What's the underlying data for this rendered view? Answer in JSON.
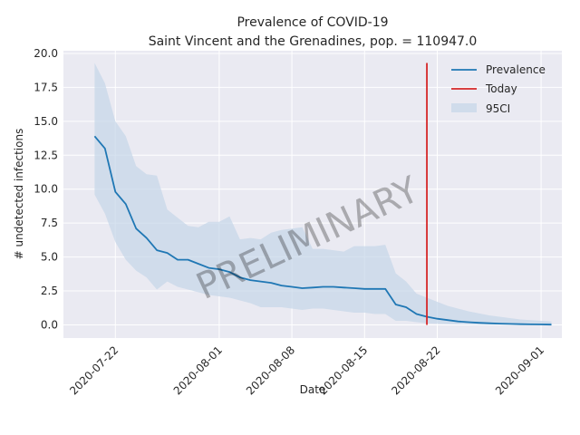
{
  "chart_data": {
    "type": "line",
    "title": "Prevalence of COVID-19",
    "subtitle": "Saint Vincent and the Grenadines, pop. = 110947.0",
    "xlabel": "Date",
    "ylabel": "# undetected infections",
    "watermark": "PRELIMINARY",
    "x_range": [
      "2020-07-17",
      "2020-09-03"
    ],
    "ylim": [
      -0.97,
      20.2
    ],
    "x_ticks": [
      "2020-07-22",
      "2020-08-01",
      "2020-08-08",
      "2020-08-15",
      "2020-08-22",
      "2020-09-01"
    ],
    "y_ticks": [
      "0.0",
      "2.5",
      "5.0",
      "7.5",
      "10.0",
      "12.5",
      "15.0",
      "17.5",
      "20.0"
    ],
    "grid": true,
    "legend_position": "top-right",
    "legend": {
      "prevalence": "Prevalence",
      "today": "Today",
      "ci": "95CI"
    },
    "colors": {
      "prevalence": "#1f77b4",
      "today": "#d62728",
      "ci": "#c5d6e8",
      "plot_bg": "#eaeaf2",
      "grid": "#ffffff"
    },
    "series": [
      {
        "name": "Prevalence",
        "dates": [
          "2020-07-20",
          "2020-07-21",
          "2020-07-22",
          "2020-07-23",
          "2020-07-24",
          "2020-07-25",
          "2020-07-26",
          "2020-07-27",
          "2020-07-28",
          "2020-07-29",
          "2020-07-30",
          "2020-07-31",
          "2020-08-01",
          "2020-08-02",
          "2020-08-03",
          "2020-08-04",
          "2020-08-05",
          "2020-08-06",
          "2020-08-07",
          "2020-08-08",
          "2020-08-09",
          "2020-08-10",
          "2020-08-11",
          "2020-08-12",
          "2020-08-13",
          "2020-08-14",
          "2020-08-15",
          "2020-08-16",
          "2020-08-17",
          "2020-08-18",
          "2020-08-19",
          "2020-08-20",
          "2020-08-21",
          "2020-08-22",
          "2020-08-23",
          "2020-08-24",
          "2020-08-25",
          "2020-08-26",
          "2020-08-27",
          "2020-08-28",
          "2020-08-29",
          "2020-08-30",
          "2020-08-31",
          "2020-09-01",
          "2020-09-02"
        ],
        "values": [
          13.9,
          13.0,
          9.8,
          8.9,
          7.1,
          6.4,
          5.5,
          5.3,
          4.8,
          4.8,
          4.5,
          4.2,
          4.1,
          3.9,
          3.5,
          3.3,
          3.2,
          3.1,
          2.9,
          2.8,
          2.7,
          2.75,
          2.8,
          2.8,
          2.75,
          2.7,
          2.65,
          2.65,
          2.65,
          1.5,
          1.3,
          0.8,
          0.6,
          0.45,
          0.35,
          0.25,
          0.2,
          0.15,
          0.12,
          0.09,
          0.07,
          0.05,
          0.04,
          0.03,
          0.02
        ],
        "lower": [
          9.6,
          8.2,
          6.1,
          4.8,
          4.0,
          3.5,
          2.6,
          3.2,
          2.8,
          2.6,
          2.4,
          2.2,
          2.1,
          2.0,
          1.8,
          1.6,
          1.3,
          1.3,
          1.3,
          1.2,
          1.1,
          1.2,
          1.2,
          1.1,
          1.0,
          0.9,
          0.9,
          0.8,
          0.8,
          0.3,
          0.3,
          0.2,
          0.12,
          0.08,
          0.06,
          0.04,
          0.03,
          0.02,
          0.02,
          0.01,
          0.01,
          0.01,
          0.01,
          0.0,
          0.0
        ],
        "upper": [
          19.3,
          17.8,
          15.0,
          13.9,
          11.7,
          11.1,
          11.0,
          8.5,
          7.9,
          7.3,
          7.2,
          7.6,
          7.6,
          8.0,
          6.3,
          6.4,
          6.3,
          6.8,
          7.0,
          7.1,
          7.2,
          5.6,
          5.6,
          5.5,
          5.4,
          5.8,
          5.8,
          5.8,
          5.9,
          3.8,
          3.2,
          2.3,
          2.0,
          1.7,
          1.4,
          1.2,
          1.0,
          0.85,
          0.7,
          0.6,
          0.5,
          0.4,
          0.35,
          0.3,
          0.25
        ]
      }
    ],
    "today": {
      "name": "Today",
      "date": "2020-08-21",
      "y_from": 0.0,
      "y_to": 19.3
    }
  }
}
